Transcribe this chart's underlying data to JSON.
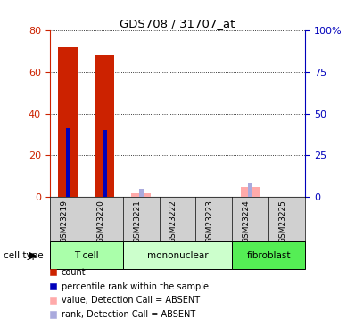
{
  "title": "GDS708 / 31707_at",
  "samples": [
    "GSM23219",
    "GSM23220",
    "GSM23221",
    "GSM23222",
    "GSM23223",
    "GSM23224",
    "GSM23225"
  ],
  "count_values": [
    72,
    68,
    0,
    0,
    0,
    0,
    0
  ],
  "rank_pct_values": [
    41.25,
    40.0,
    0,
    0,
    0,
    0,
    0
  ],
  "absent_count_values": [
    0,
    0,
    2,
    0,
    0,
    5,
    0
  ],
  "absent_rank_pct_values": [
    0,
    0,
    5.0,
    1.25,
    0,
    8.75,
    0
  ],
  "cell_types": [
    {
      "label": "T cell",
      "start": 0,
      "end": 2,
      "color": "#AAFFAA"
    },
    {
      "label": "mononuclear",
      "start": 2,
      "end": 5,
      "color": "#CCFFCC"
    },
    {
      "label": "fibroblast",
      "start": 5,
      "end": 7,
      "color": "#55EE55"
    }
  ],
  "ylim_left": [
    0,
    80
  ],
  "ylim_right": [
    0,
    100
  ],
  "yticks_left": [
    0,
    20,
    40,
    60,
    80
  ],
  "yticks_right": [
    0,
    25,
    50,
    75,
    100
  ],
  "ytick_labels_right": [
    "0",
    "25",
    "50",
    "75",
    "100%"
  ],
  "color_count": "#CC2200",
  "color_rank": "#0000BB",
  "color_absent_count": "#FFAAAA",
  "color_absent_rank": "#AAAADD",
  "left_axis_color": "#CC2200",
  "right_axis_color": "#0000BB",
  "cell_type_label": "cell type"
}
